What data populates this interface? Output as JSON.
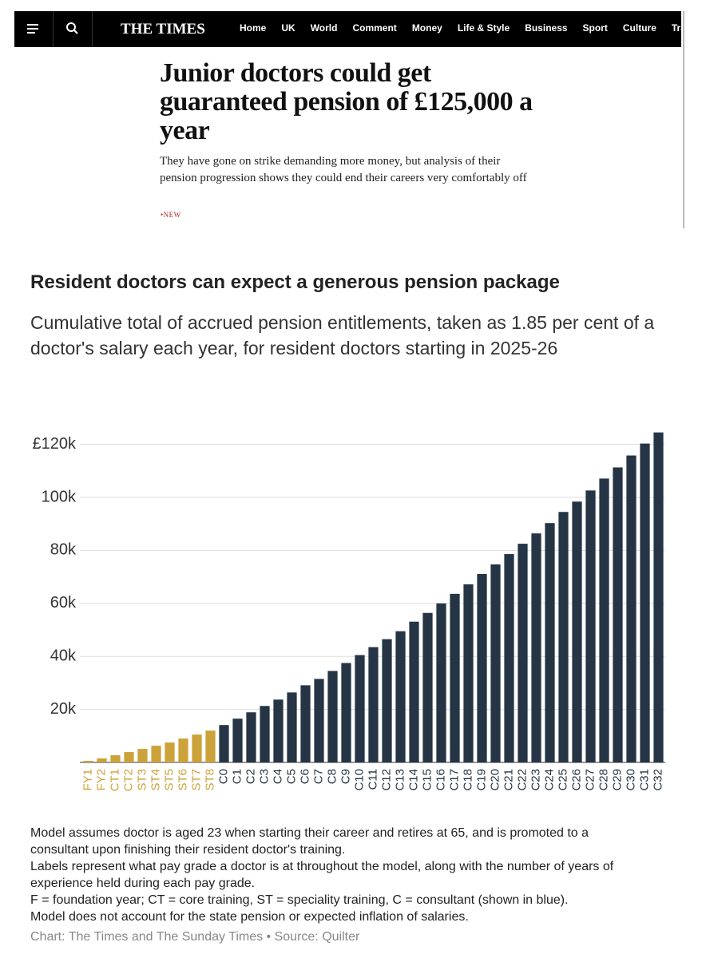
{
  "nav": {
    "logo": "THE TIMES",
    "items": [
      "Home",
      "UK",
      "World",
      "Comment",
      "Money",
      "Life & Style",
      "Business",
      "Sport",
      "Culture",
      "Travel"
    ]
  },
  "article": {
    "headline": "Junior doctors could get guaranteed pension of £125,000 a year",
    "standfirst": "They have gone on strike demanding more money, but analysis of their pension progression shows they could end their careers very comfortably off",
    "tag": "NEW"
  },
  "chart_data": {
    "type": "bar",
    "title": "Resident doctors can expect a generous pension package",
    "subtitle": "Cumulative total of accrued pension entitlements, taken as 1.85 per cent of a doctor's salary each year, for resident doctors starting in 2025-26",
    "categories": [
      "FY1",
      "FY2",
      "CT1",
      "CT2",
      "ST3",
      "ST4",
      "ST5",
      "ST6",
      "ST7",
      "ST8",
      "C0",
      "C1",
      "C2",
      "C3",
      "C4",
      "C5",
      "C6",
      "C7",
      "C8",
      "C9",
      "C10",
      "C11",
      "C12",
      "C13",
      "C14",
      "C15",
      "C16",
      "C17",
      "C18",
      "C19",
      "C20",
      "C21",
      "C22",
      "C23",
      "C24",
      "C25",
      "C26",
      "C27",
      "C28",
      "C29",
      "C30",
      "C31",
      "C32"
    ],
    "values": [
      600,
      1500,
      2700,
      3900,
      5100,
      6300,
      7500,
      9000,
      10500,
      12000,
      14100,
      16500,
      18900,
      21300,
      23700,
      26400,
      29100,
      31500,
      34500,
      37500,
      40500,
      43500,
      46500,
      49500,
      53100,
      56400,
      60000,
      63600,
      67200,
      71100,
      74700,
      78600,
      82500,
      86400,
      90300,
      94500,
      98400,
      102600,
      107100,
      111300,
      115800,
      120300,
      124500
    ],
    "colors": [
      "#cca23a",
      "#cca23a",
      "#cca23a",
      "#cca23a",
      "#cca23a",
      "#cca23a",
      "#cca23a",
      "#cca23a",
      "#cca23a",
      "#cca23a",
      "#253545",
      "#253545",
      "#253545",
      "#253545",
      "#253545",
      "#253545",
      "#253545",
      "#253545",
      "#253545",
      "#253545",
      "#253545",
      "#253545",
      "#253545",
      "#253545",
      "#253545",
      "#253545",
      "#253545",
      "#253545",
      "#253545",
      "#253545",
      "#253545",
      "#253545",
      "#253545",
      "#253545",
      "#253545",
      "#253545",
      "#253545",
      "#253545",
      "#253545",
      "#253545",
      "#253545",
      "#253545",
      "#253545"
    ],
    "ylim": [
      0,
      125000
    ],
    "yticks": [
      {
        "value": 20000,
        "label": "20k"
      },
      {
        "value": 40000,
        "label": "40k"
      },
      {
        "value": 60000,
        "label": "60k"
      },
      {
        "value": 80000,
        "label": "80k"
      },
      {
        "value": 100000,
        "label": "100k"
      },
      {
        "value": 120000,
        "label": "£120k"
      }
    ],
    "grid": true,
    "notes": [
      "Model assumes doctor is aged 23 when starting their career and retires at 65, and is promoted to a consultant upon finishing their resident doctor's training.",
      "Labels represent what pay grade a doctor is at throughout the model, along with the number of years of experience held during each pay grade.",
      "F = foundation year; CT = core training, ST = speciality training, C = consultant (shown in blue).",
      "Model does not account for the state pension or expected inflation of salaries."
    ],
    "source": "Chart: The Times and The Sunday Times • Source: Quilter"
  }
}
